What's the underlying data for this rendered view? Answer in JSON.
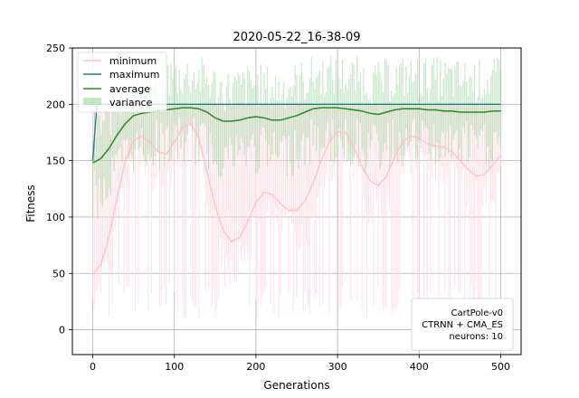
{
  "chart_data": {
    "type": "line",
    "title": "2020-05-22_16-38-09",
    "xlabel": "Generations",
    "ylabel": "Fitness",
    "xlim": [
      -25,
      525
    ],
    "ylim": [
      -22,
      250
    ],
    "xticks": [
      0,
      100,
      200,
      300,
      400,
      500
    ],
    "yticks": [
      0,
      50,
      100,
      150,
      200,
      250
    ],
    "grid": true,
    "legend_position": "top-left",
    "legend": [
      "minimum",
      "maximum",
      "average",
      "variance"
    ],
    "colors": {
      "minimum": "#ffc0cb",
      "maximum": "#1f7f8c",
      "average": "#2a8a2a",
      "variance": "#8fcf8f",
      "raw_minimum": "#ffdbe4"
    },
    "series": [
      {
        "name": "minimum",
        "note": "smoothed curve",
        "x": [
          0,
          10,
          20,
          30,
          40,
          50,
          60,
          70,
          80,
          90,
          100,
          110,
          120,
          130,
          140,
          150,
          160,
          170,
          180,
          190,
          200,
          210,
          220,
          230,
          240,
          250,
          260,
          270,
          280,
          290,
          300,
          310,
          320,
          330,
          340,
          350,
          360,
          370,
          380,
          390,
          400,
          410,
          420,
          430,
          440,
          450,
          460,
          470,
          480,
          490,
          500
        ],
        "y": [
          49,
          58,
          83,
          118,
          150,
          168,
          172,
          166,
          158,
          156,
          166,
          180,
          183,
          170,
          140,
          110,
          88,
          78,
          82,
          96,
          113,
          122,
          120,
          112,
          106,
          106,
          114,
          130,
          150,
          167,
          176,
          175,
          162,
          145,
          132,
          128,
          136,
          153,
          167,
          172,
          170,
          165,
          163,
          162,
          158,
          150,
          142,
          136,
          138,
          146,
          155
        ]
      },
      {
        "name": "maximum",
        "x": [
          0,
          5,
          10,
          500
        ],
        "y": [
          150,
          200,
          200,
          200
        ]
      },
      {
        "name": "average",
        "note": "smoothed curve",
        "x": [
          0,
          10,
          20,
          30,
          40,
          50,
          60,
          70,
          80,
          90,
          100,
          110,
          120,
          130,
          140,
          150,
          160,
          170,
          180,
          190,
          200,
          210,
          220,
          230,
          240,
          250,
          260,
          270,
          280,
          290,
          300,
          310,
          320,
          330,
          340,
          350,
          360,
          370,
          380,
          390,
          400,
          410,
          420,
          430,
          440,
          450,
          460,
          470,
          480,
          490,
          500
        ],
        "y": [
          148,
          152,
          161,
          173,
          183,
          190,
          192,
          193,
          194,
          195,
          196,
          197,
          197,
          196,
          193,
          188,
          185,
          185,
          186,
          188,
          189,
          188,
          186,
          186,
          188,
          190,
          193,
          196,
          197,
          197,
          197,
          196,
          195,
          194,
          192,
          191,
          193,
          195,
          196,
          196,
          196,
          195,
          195,
          194,
          194,
          193,
          193,
          193,
          193,
          194,
          194
        ]
      }
    ],
    "annotation": {
      "lines": [
        "CartPole-v0",
        "CTRNN + CMA_ES",
        "neurons: 10"
      ],
      "position": "bottom-right"
    }
  }
}
